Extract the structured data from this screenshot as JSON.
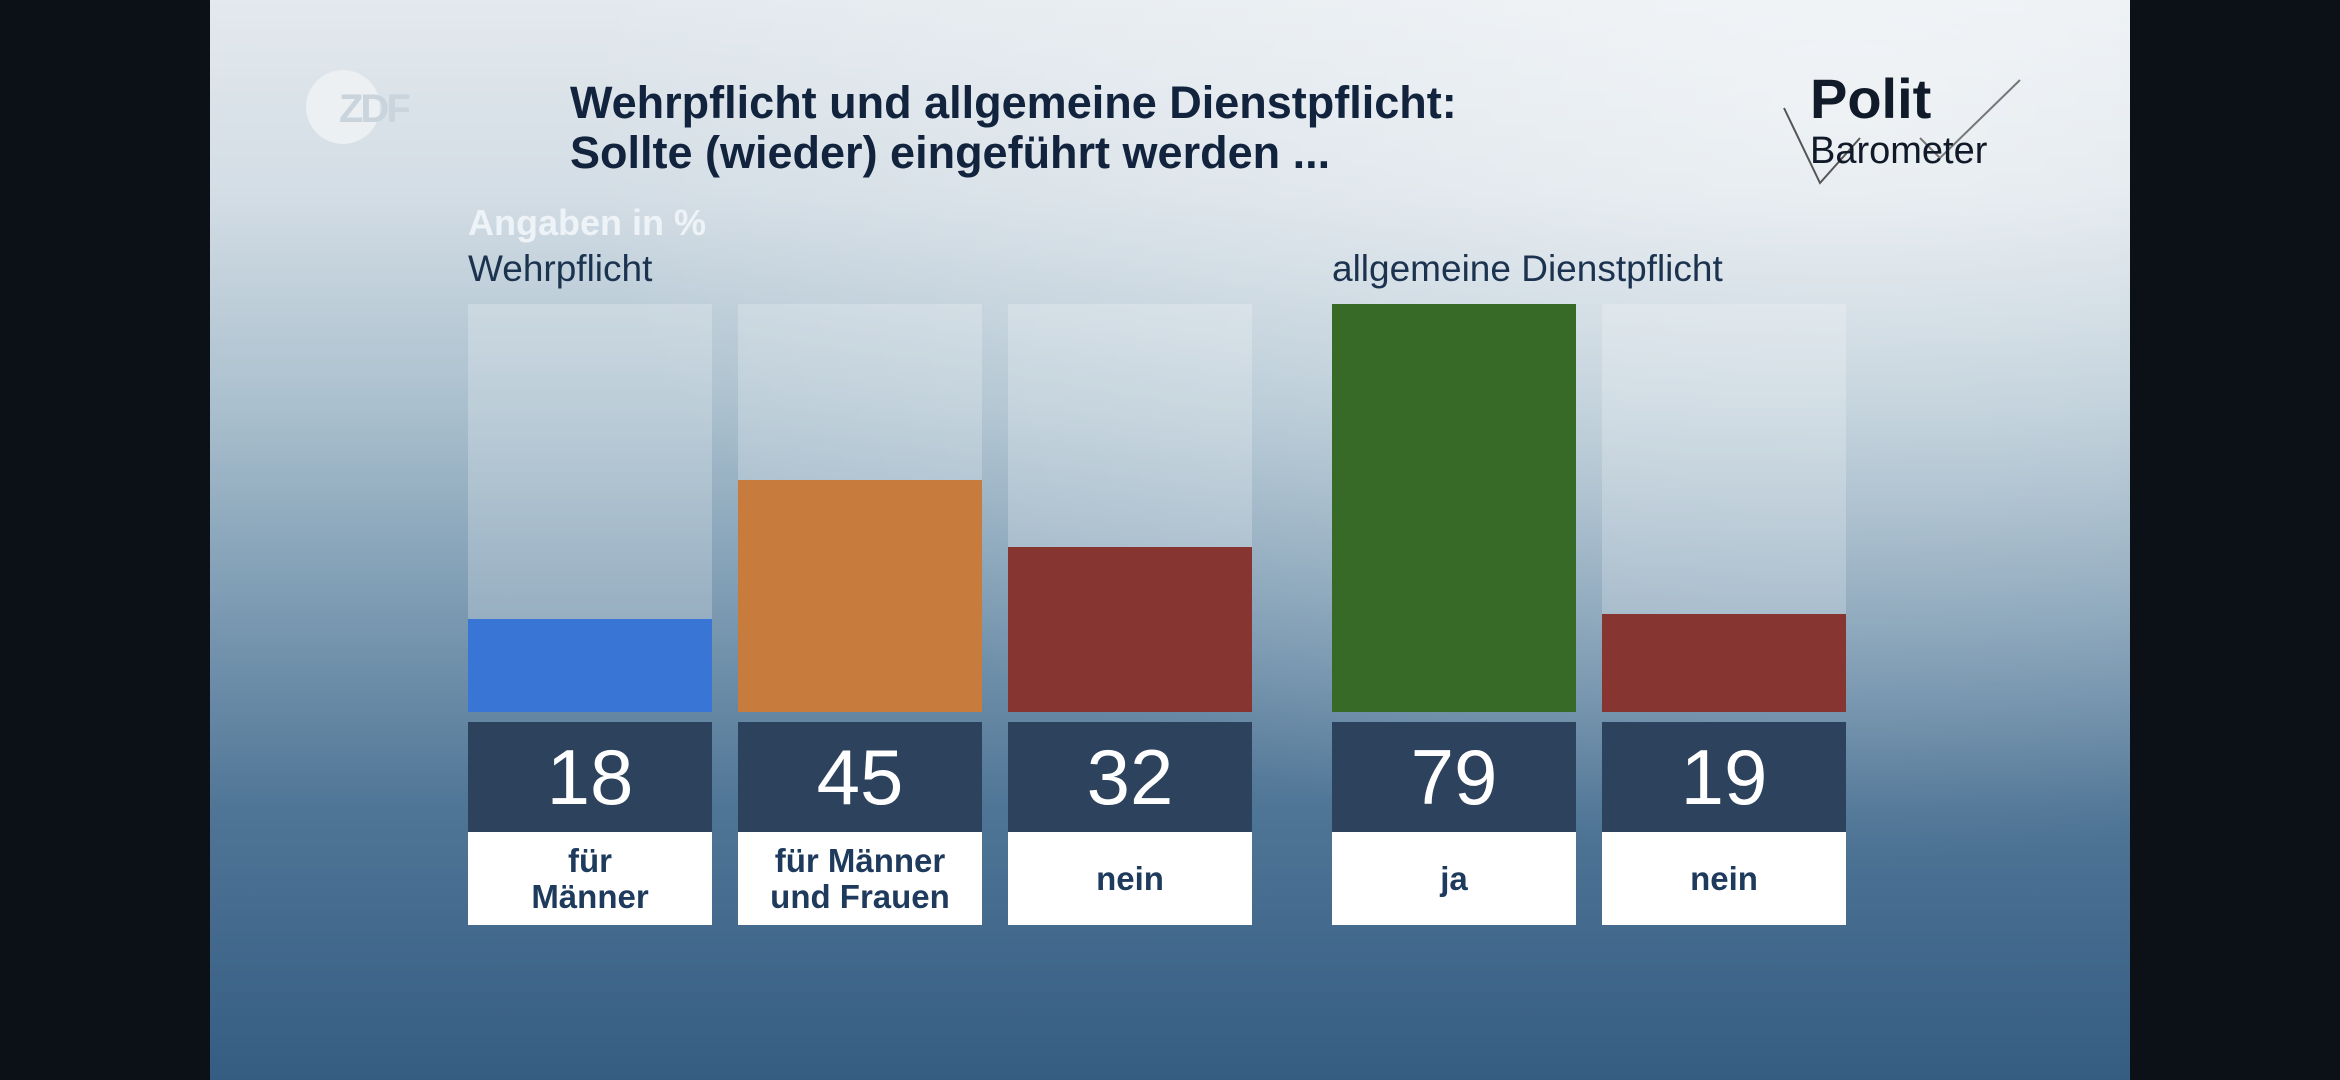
{
  "broadcaster_logo": "ZDF",
  "brand_logo": "Polit Barometer",
  "title_line1": "Wehrpflicht und allgemeine Dienstpflicht:",
  "title_line2": "Sollte (wieder) eingeführt werden ...",
  "chart_data": [
    {
      "type": "bar",
      "title": "Wehrpflicht",
      "unit_note": "Angaben in %",
      "categories": [
        "für Männer",
        "für Männer und Frauen",
        "nein"
      ],
      "values": [
        18,
        45,
        32
      ],
      "colors": [
        "#3875d4",
        "#c77b3c",
        "#873531"
      ],
      "ylim": [
        0,
        79
      ]
    },
    {
      "type": "bar",
      "title": "allgemeine Dienstpflicht",
      "categories": [
        "ja",
        "nein"
      ],
      "values": [
        79,
        19
      ],
      "colors": [
        "#366a26",
        "#873531"
      ],
      "ylim": [
        0,
        79
      ]
    }
  ]
}
